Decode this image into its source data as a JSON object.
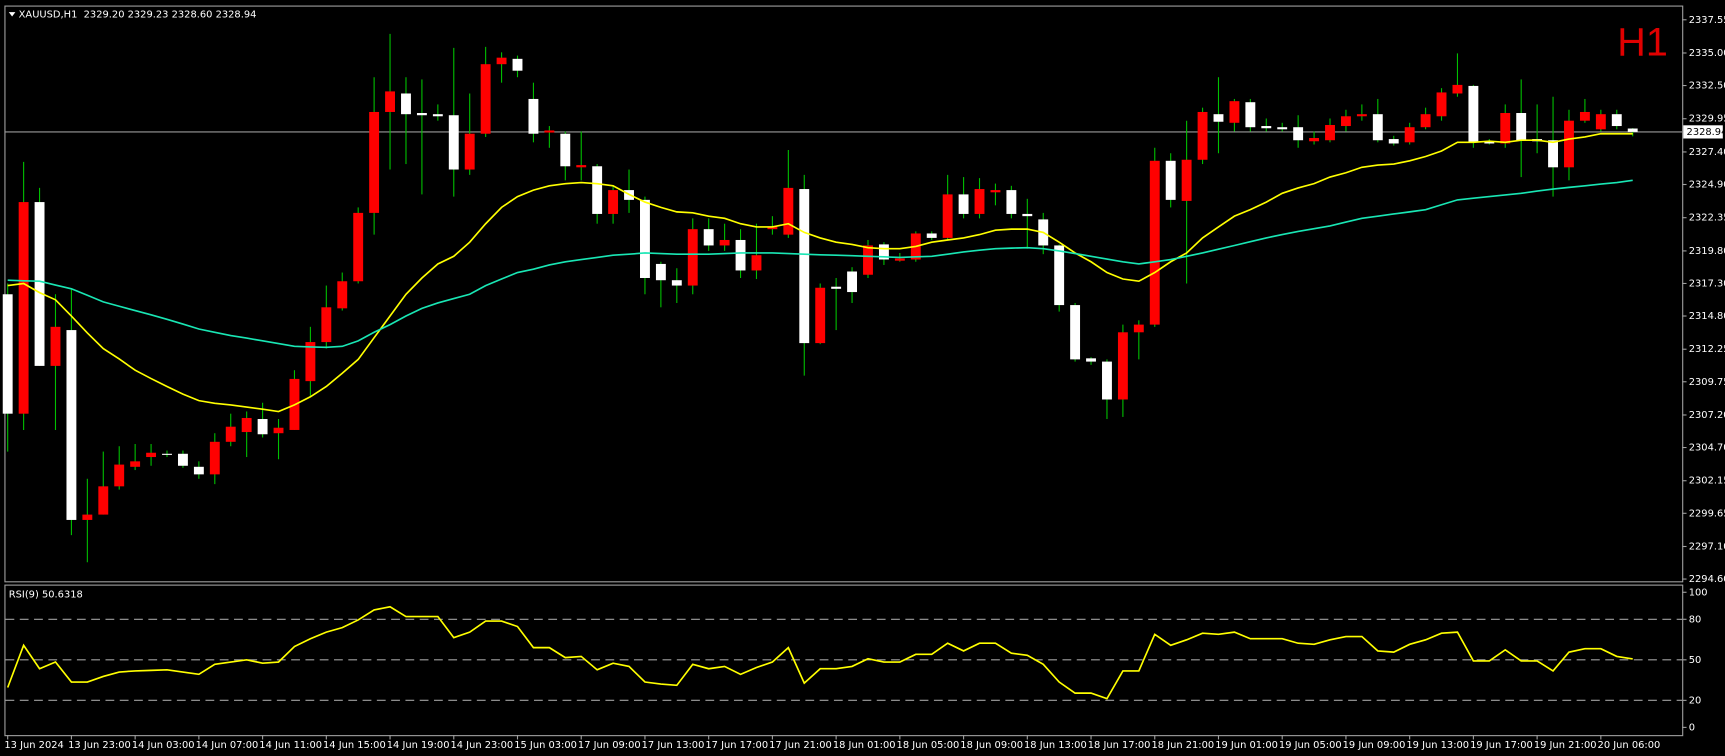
{
  "chart_data": [
    {
      "type": "candlestick",
      "title": "XAUUSD,H1  2329.20 2329.23 2328.60 2328.94",
      "timeframe": "H1",
      "up_color": "#ff0000",
      "down_color": "#ffffff",
      "wick_color": "#00c000",
      "ylim": [
        2294.43,
        2338.56
      ],
      "yticks": [
        2337.55,
        {
          "value": 2335,
          "label": "2335.00"
        },
        {
          "value": 2332.5,
          "label": "2332.50"
        },
        2329.95,
        {
          "value": 2327.4,
          "label": "2327.40"
        },
        {
          "value": 2324.9,
          "label": "2324.90"
        },
        2322.35,
        {
          "value": 2319.8,
          "label": "2319.80"
        },
        {
          "value": 2317.3,
          "label": "2317.30"
        },
        {
          "value": 2314.8,
          "label": "2314.80"
        },
        2312.25,
        2309.75,
        {
          "value": 2307.2,
          "label": "2307.20"
        },
        {
          "value": 2304.7,
          "label": "2304.70"
        },
        2302.15,
        2299.65,
        {
          "value": 2297.1,
          "label": "2297.10"
        },
        {
          "value": 2294.6,
          "label": "2294.60"
        }
      ],
      "bid": {
        "value": 2328.94,
        "label": "2328.94"
      },
      "open": [
        2316.47,
        2307.3,
        2323.55,
        2310.97,
        2313.72,
        2299.14,
        2299.55,
        2301.72,
        2303.22,
        2303.97,
        2304.22,
        2304.22,
        2303.22,
        2302.64,
        2305.14,
        2305.89,
        2306.89,
        2305.8,
        2306.05,
        2309.8,
        2312.8,
        2315.39,
        2317.47,
        2322.72,
        2330.47,
        2331.89,
        2330.39,
        2330.3,
        2330.22,
        2326.05,
        2328.8,
        2334.14,
        2334.55,
        2331.47,
        2328.89,
        2328.8,
        2326.22,
        2326.3,
        2322.64,
        2324.47,
        2323.72,
        2318.8,
        2317.55,
        2317.14,
        2321.47,
        2320.22,
        2320.64,
        2318.3,
        2321.47,
        2321.05,
        2324.55,
        2312.72,
        2317.05,
        2318.22,
        2317.97,
        2320.3,
        2319.05,
        2319.14,
        2321.14,
        2320.8,
        2324.14,
        2322.64,
        2324.3,
        2324.47,
        2322.64,
        2322.22,
        2320.22,
        2315.64,
        2311.55,
        2311.3,
        2308.39,
        2313.55,
        2314.14,
        2326.72,
        2323.64,
        2326.8,
        2330.3,
        2329.64,
        2331.22,
        2329.39,
        2329.3,
        2329.3,
        2328.22,
        2328.3,
        2329.39,
        2330.14,
        2330.3,
        2328.39,
        2328.14,
        2329.3,
        2330.14,
        2331.89,
        2332.47,
        2328.22,
        2328.05,
        2330.39,
        2328.39,
        2328.3,
        2326.22,
        2329.8,
        2329.14,
        2330.3,
        2329.2
      ],
      "high": [
        2317.3,
        2326.64,
        2324.64,
        2316.47,
        2316.89,
        2302.3,
        2304.39,
        2304.8,
        2304.97,
        2304.97,
        2304.47,
        2304.47,
        2303.64,
        2305.8,
        2307.3,
        2307.47,
        2308.14,
        2306.89,
        2310.64,
        2313.97,
        2317.14,
        2318.14,
        2323.14,
        2333.14,
        2336.47,
        2333.14,
        2332.97,
        2331.05,
        2335.39,
        2331.89,
        2335.47,
        2335.05,
        2334.8,
        2332.72,
        2329.39,
        2328.97,
        2328.97,
        2326.47,
        2324.8,
        2326.05,
        2323.97,
        2318.97,
        2318.47,
        2322.3,
        2322.3,
        2321.89,
        2321.47,
        2321.89,
        2322.47,
        2327.55,
        2325.64,
        2317.3,
        2317.72,
        2318.55,
        2320.64,
        2320.47,
        2319.64,
        2321.3,
        2321.3,
        2325.64,
        2325.47,
        2325.39,
        2324.97,
        2324.8,
        2323.8,
        2322.72,
        2320.3,
        2315.8,
        2311.64,
        2311.47,
        2314.14,
        2314.47,
        2327.72,
        2327.3,
        2329.8,
        2330.8,
        2333.14,
        2331.47,
        2331.47,
        2329.97,
        2329.64,
        2330.22,
        2328.97,
        2329.97,
        2330.64,
        2331.05,
        2331.47,
        2328.64,
        2329.64,
        2330.8,
        2332.3,
        2334.97,
        2332.55,
        2328.39,
        2331.05,
        2332.97,
        2331.05,
        2331.64,
        2330.64,
        2331.47,
        2330.64,
        2330.64,
        2329.23
      ],
      "low": [
        2304.39,
        2306.05,
        2310.97,
        2306.05,
        2297.97,
        2295.89,
        2299.55,
        2301.47,
        2302.97,
        2303.3,
        2303.97,
        2303.14,
        2302.3,
        2301.89,
        2304.8,
        2303.97,
        2305.47,
        2303.8,
        2306.05,
        2308.55,
        2312.3,
        2315.22,
        2317.3,
        2321.05,
        2326.05,
        2326.47,
        2324.14,
        2329.8,
        2323.97,
        2325.64,
        2328.55,
        2332.72,
        2333.14,
        2328.14,
        2327.72,
        2325.22,
        2325.22,
        2321.89,
        2321.89,
        2322.72,
        2316.47,
        2315.47,
        2315.8,
        2316.47,
        2319.8,
        2319.8,
        2317.72,
        2317.64,
        2321.05,
        2320.8,
        2310.22,
        2312.64,
        2313.72,
        2315.8,
        2317.72,
        2318.72,
        2318.97,
        2318.97,
        2320.64,
        2320.64,
        2322.3,
        2322.3,
        2323.3,
        2322.3,
        2319.97,
        2319.55,
        2315.14,
        2311.3,
        2311.05,
        2306.89,
        2307.05,
        2311.47,
        2313.97,
        2323.14,
        2317.3,
        2326.47,
        2327.3,
        2328.97,
        2328.97,
        2328.97,
        2328.97,
        2327.72,
        2327.97,
        2328.14,
        2328.97,
        2329.8,
        2328.14,
        2327.89,
        2327.97,
        2329.14,
        2329.8,
        2331.64,
        2327.72,
        2327.97,
        2327.72,
        2325.47,
        2327.3,
        2323.97,
        2325.22,
        2329.64,
        2328.97,
        2329.14,
        2328.6
      ],
      "close": [
        2307.3,
        2323.55,
        2310.97,
        2313.97,
        2299.14,
        2299.55,
        2301.72,
        2303.39,
        2303.64,
        2304.3,
        2304.14,
        2303.3,
        2302.64,
        2305.14,
        2306.3,
        2306.97,
        2305.72,
        2306.22,
        2309.97,
        2312.8,
        2315.47,
        2317.47,
        2322.72,
        2330.47,
        2332.05,
        2330.3,
        2330.22,
        2330.14,
        2326.05,
        2328.8,
        2334.14,
        2334.64,
        2333.64,
        2328.8,
        2329.05,
        2326.3,
        2326.39,
        2322.64,
        2324.47,
        2323.72,
        2317.72,
        2317.55,
        2317.14,
        2321.47,
        2320.22,
        2320.64,
        2318.3,
        2319.47,
        2321.64,
        2324.64,
        2312.72,
        2316.97,
        2316.89,
        2316.64,
        2320.22,
        2319.14,
        2319.22,
        2321.14,
        2320.8,
        2324.14,
        2322.64,
        2324.55,
        2324.47,
        2322.64,
        2322.47,
        2320.22,
        2315.64,
        2311.47,
        2311.3,
        2308.39,
        2313.55,
        2314.14,
        2326.72,
        2323.72,
        2326.8,
        2330.47,
        2329.72,
        2331.3,
        2329.3,
        2329.22,
        2329.14,
        2328.3,
        2328.47,
        2329.47,
        2330.14,
        2330.3,
        2328.3,
        2328.05,
        2329.3,
        2330.3,
        2331.97,
        2332.55,
        2328.14,
        2328.05,
        2330.39,
        2328.3,
        2328.22,
        2326.22,
        2329.8,
        2330.47,
        2330.3,
        2329.39,
        2328.94
      ],
      "series": [
        {
          "color": "#ffff00",
          "values": [
            2317.14,
            2317.3,
            2316.6,
            2316.05,
            2314.8,
            2313.5,
            2312.3,
            2311.5,
            2310.64,
            2310.0,
            2309.39,
            2308.8,
            2308.3,
            2308.1,
            2307.97,
            2307.8,
            2307.64,
            2307.47,
            2307.97,
            2308.6,
            2309.39,
            2310.4,
            2311.47,
            2313.14,
            2314.8,
            2316.47,
            2317.72,
            2318.8,
            2319.39,
            2320.47,
            2321.89,
            2323.14,
            2323.97,
            2324.47,
            2324.8,
            2324.97,
            2325.05,
            2324.97,
            2324.8,
            2324.14,
            2323.55,
            2323.14,
            2322.8,
            2322.72,
            2322.47,
            2322.3,
            2321.89,
            2321.64,
            2321.64,
            2321.89,
            2321.22,
            2320.8,
            2320.47,
            2320.3,
            2320.05,
            2319.97,
            2319.97,
            2320.14,
            2320.47,
            2320.64,
            2320.8,
            2321.05,
            2321.39,
            2321.47,
            2321.47,
            2321.22,
            2320.47,
            2319.64,
            2318.97,
            2318.14,
            2317.64,
            2317.47,
            2318.14,
            2318.97,
            2319.64,
            2320.8,
            2321.64,
            2322.47,
            2322.97,
            2323.55,
            2324.22,
            2324.64,
            2324.97,
            2325.47,
            2325.8,
            2326.22,
            2326.39,
            2326.47,
            2326.72,
            2327.05,
            2327.47,
            2328.14,
            2328.14,
            2328.22,
            2328.14,
            2328.3,
            2328.3,
            2328.14,
            2328.39,
            2328.55,
            2328.8,
            2328.8,
            2328.8
          ]
        },
        {
          "color": "#19e6b4",
          "values": [
            2317.55,
            2317.51,
            2317.47,
            2317.18,
            2316.89,
            2316.39,
            2315.89,
            2315.55,
            2315.22,
            2314.89,
            2314.55,
            2314.18,
            2313.8,
            2313.55,
            2313.3,
            2313.1,
            2312.89,
            2312.68,
            2312.47,
            2312.43,
            2312.39,
            2312.47,
            2312.89,
            2313.55,
            2314.14,
            2314.8,
            2315.39,
            2315.8,
            2316.14,
            2316.47,
            2317.14,
            2317.64,
            2318.14,
            2318.39,
            2318.72,
            2318.97,
            2319.14,
            2319.3,
            2319.47,
            2319.55,
            2319.64,
            2319.6,
            2319.55,
            2319.55,
            2319.55,
            2319.6,
            2319.64,
            2319.64,
            2319.64,
            2319.6,
            2319.55,
            2319.5,
            2319.47,
            2319.43,
            2319.39,
            2319.35,
            2319.3,
            2319.35,
            2319.39,
            2319.55,
            2319.72,
            2319.85,
            2319.97,
            2320.01,
            2320.05,
            2319.97,
            2319.8,
            2319.6,
            2319.39,
            2319.18,
            2318.97,
            2318.8,
            2318.97,
            2319.14,
            2319.39,
            2319.64,
            2319.93,
            2320.22,
            2320.51,
            2320.8,
            2321.05,
            2321.3,
            2321.51,
            2321.72,
            2322.01,
            2322.3,
            2322.47,
            2322.64,
            2322.8,
            2322.97,
            2323.35,
            2323.72,
            2323.85,
            2323.97,
            2324.1,
            2324.22,
            2324.39,
            2324.55,
            2324.68,
            2324.8,
            2324.93,
            2325.05,
            2325.22
          ]
        }
      ]
    },
    {
      "type": "line",
      "indicator_label": "RSI(9) 50.6318",
      "color": "#ffff00",
      "ylim": [
        -5.7,
        105.7
      ],
      "yticks": [
        0,
        20,
        50,
        80,
        100
      ],
      "levels": [
        20,
        50,
        80
      ],
      "categories": [
        "13 Jun 2024",
        null,
        null,
        null,
        "13 Jun 23:00",
        null,
        null,
        null,
        "14 Jun 03:00",
        null,
        null,
        null,
        "14 Jun 07:00",
        null,
        null,
        null,
        "14 Jun 11:00",
        null,
        null,
        null,
        "14 Jun 15:00",
        null,
        null,
        null,
        "14 Jun 19:00",
        null,
        null,
        null,
        "14 Jun 23:00",
        null,
        null,
        null,
        "15 Jun 03:00",
        null,
        null,
        null,
        "17 Jun 09:00",
        null,
        null,
        null,
        "17 Jun 13:00",
        null,
        null,
        null,
        "17 Jun 17:00",
        null,
        null,
        null,
        "17 Jun 21:00",
        null,
        null,
        null,
        "18 Jun 01:00",
        null,
        null,
        null,
        "18 Jun 05:00",
        null,
        null,
        null,
        "18 Jun 09:00",
        null,
        null,
        null,
        "18 Jun 13:00",
        null,
        null,
        null,
        "18 Jun 17:00",
        null,
        null,
        null,
        "18 Jun 21:00",
        null,
        null,
        null,
        "19 Jun 01:00",
        null,
        null,
        null,
        "19 Jun 05:00",
        null,
        null,
        null,
        "19 Jun 09:00",
        null,
        null,
        null,
        "19 Jun 13:00",
        null,
        null,
        null,
        "19 Jun 17:00",
        null,
        null,
        null,
        "19 Jun 21:00",
        null,
        null,
        null,
        "20 Jun 06:00",
        null,
        null
      ],
      "values": [
        29.5,
        60.7,
        43.4,
        48.4,
        33.6,
        33.6,
        37.7,
        41.0,
        41.8,
        42.2,
        42.6,
        41.0,
        39.3,
        46.7,
        48.4,
        50.0,
        47.5,
        48.4,
        59.8,
        65.6,
        70.5,
        73.8,
        79.5,
        86.9,
        89.3,
        82.0,
        82.0,
        82.0,
        66.4,
        70.5,
        78.7,
        78.7,
        74.6,
        59.0,
        59.0,
        51.6,
        52.5,
        42.6,
        47.5,
        45.1,
        33.6,
        32.0,
        31.1,
        46.7,
        43.4,
        45.1,
        39.3,
        44.3,
        48.4,
        59.0,
        32.8,
        43.4,
        43.4,
        45.1,
        50.8,
        48.4,
        48.4,
        54.1,
        54.1,
        62.3,
        56.6,
        62.3,
        62.3,
        54.9,
        53.3,
        46.7,
        33.6,
        25.4,
        25.4,
        21.3,
        41.8,
        41.8,
        68.9,
        60.7,
        64.8,
        69.7,
        68.9,
        70.5,
        65.6,
        65.6,
        65.6,
        62.3,
        61.5,
        64.8,
        67.2,
        67.2,
        56.6,
        55.7,
        61.5,
        64.8,
        69.7,
        70.5,
        49.2,
        49.2,
        57.4,
        49.2,
        49.2,
        41.8,
        55.7,
        58.2,
        58.2,
        52.5,
        50.6318
      ]
    }
  ]
}
